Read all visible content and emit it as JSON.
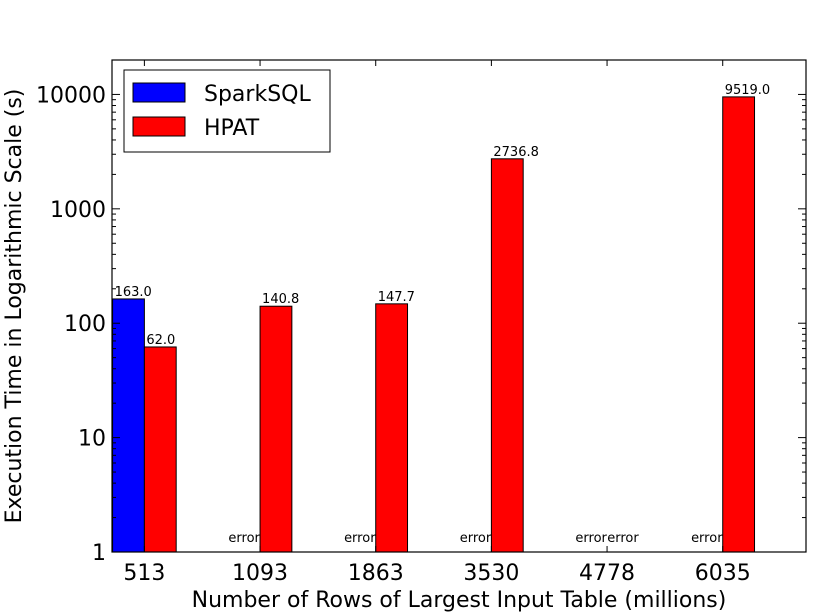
{
  "chart_data": {
    "type": "bar",
    "title": "",
    "xlabel": "Number of Rows of Largest Input Table (millions)",
    "ylabel": "Execution Time in Logarithmic Scale (s)",
    "yscale": "log",
    "ylim": [
      1,
      20000
    ],
    "grid": false,
    "legend_placement": "top-left",
    "categories": [
      "513",
      "1093",
      "1863",
      "3530",
      "4778",
      "6035"
    ],
    "yticks": [
      1,
      10,
      100,
      1000,
      10000
    ],
    "ytick_labels": [
      "1",
      "10",
      "100",
      "1000",
      "10000"
    ],
    "series": [
      {
        "name": "SparkSQL",
        "color": "#0000ff",
        "values": [
          163.0,
          null,
          null,
          null,
          null,
          null
        ],
        "labels": [
          "163.0",
          "error",
          "error",
          "error",
          "error",
          "error"
        ]
      },
      {
        "name": "HPAT",
        "color": "#ff0000",
        "values": [
          62.0,
          140.8,
          147.7,
          2736.8,
          null,
          9519.0
        ],
        "labels": [
          "62.0",
          "140.8",
          "147.7",
          "2736.8",
          "error",
          "9519.0"
        ]
      }
    ]
  }
}
